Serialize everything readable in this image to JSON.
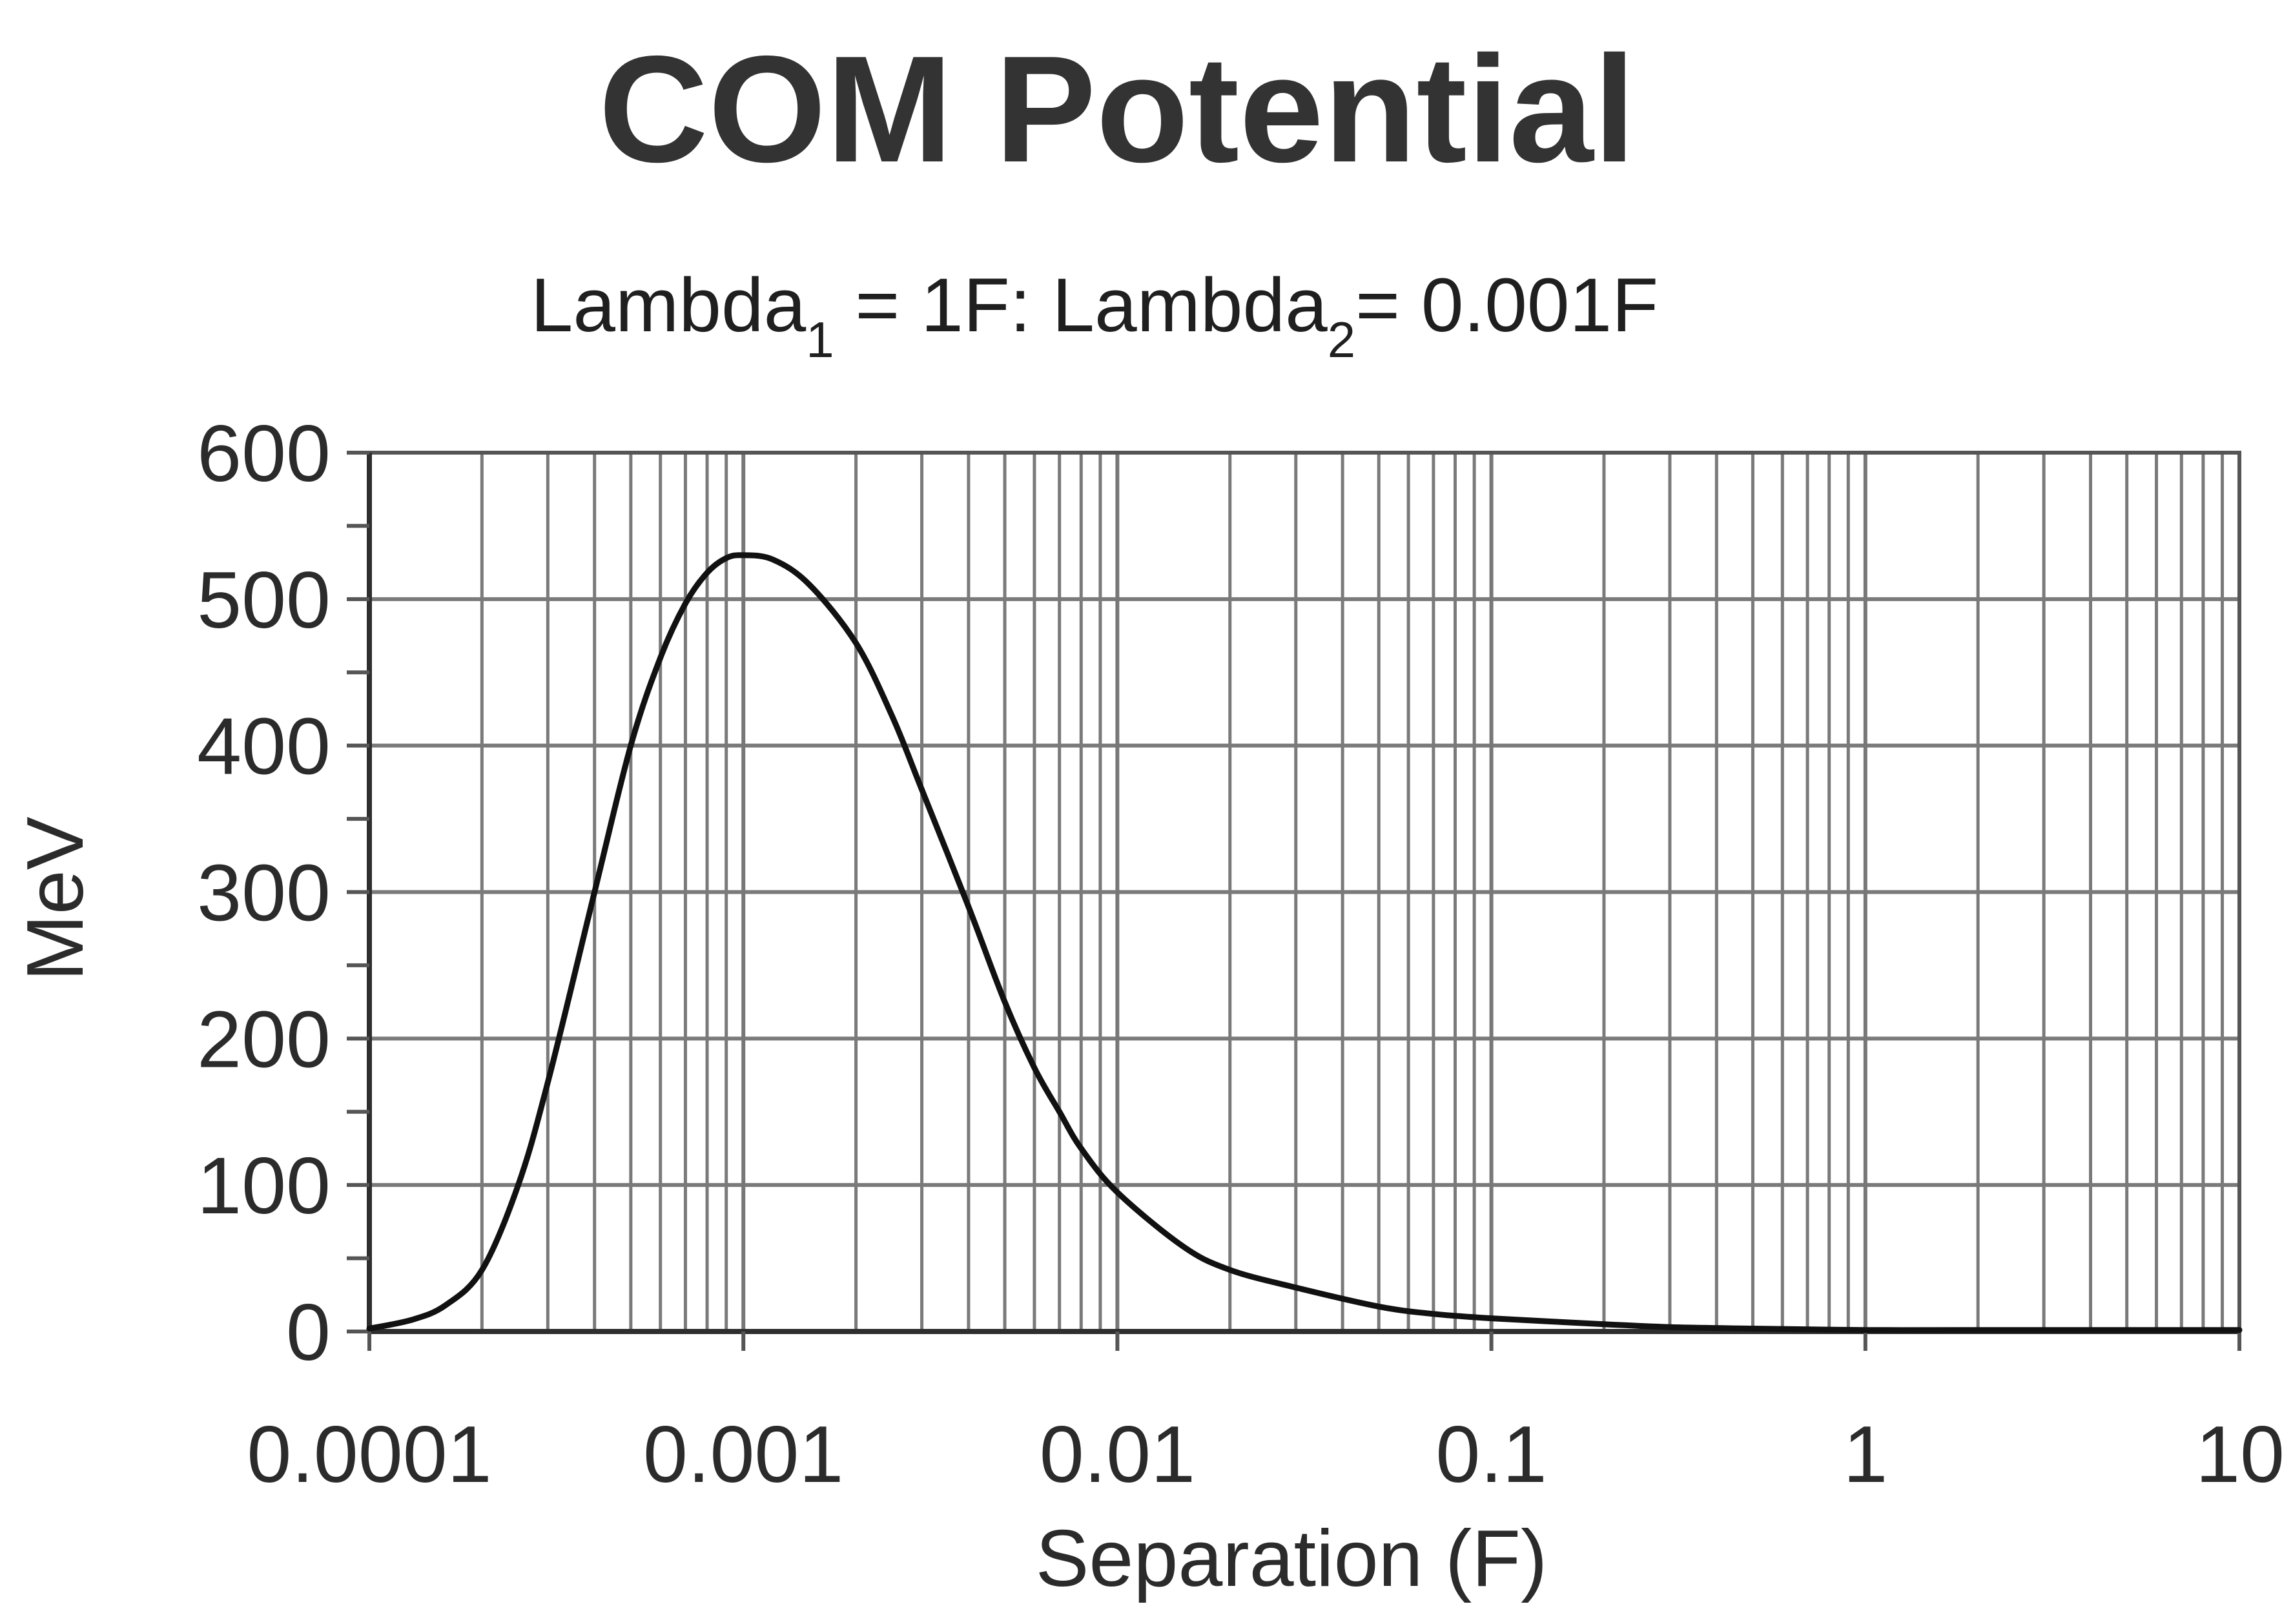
{
  "chart_data": {
    "type": "line",
    "title": "COM Potential",
    "subtitle": {
      "part1": "Lambda",
      "sub1": "1",
      "part2": " = 1F:  Lambda",
      "sub2": "2",
      "part3": "= 0.001F"
    },
    "xlabel": "Separation (F)",
    "ylabel": "MeV",
    "x_scale": "log",
    "xlim": [
      0.0001,
      10
    ],
    "ylim": [
      0,
      600
    ],
    "x_tick_labels": [
      "0.0001",
      "0.001",
      "0.01",
      "0.1",
      "1",
      "10"
    ],
    "x_tick_values": [
      0.0001,
      0.001,
      0.01,
      0.1,
      1,
      10
    ],
    "y_tick_labels": [
      "0",
      "100",
      "200",
      "300",
      "400",
      "500",
      "600"
    ],
    "y_tick_values": [
      0,
      100,
      200,
      300,
      400,
      500,
      600
    ],
    "grid": true,
    "legend": "none",
    "series": [
      {
        "color": "#111111",
        "x": [
          0.0001,
          0.00013,
          0.00016,
          0.0002,
          0.00025,
          0.0003,
          0.0004,
          0.0005,
          0.0006,
          0.0007,
          0.0008,
          0.0009,
          0.001,
          0.0012,
          0.0015,
          0.002,
          0.0025,
          0.003,
          0.004,
          0.005,
          0.006,
          0.007,
          0.008,
          0.01,
          0.015,
          0.02,
          0.03,
          0.05,
          0.07,
          0.1,
          0.2,
          0.3,
          0.5,
          1,
          2,
          5,
          10
        ],
        "y": [
          2,
          8,
          18,
          42,
          100,
          170,
          300,
          400,
          460,
          497,
          518,
          528,
          530,
          527,
          510,
          470,
          420,
          370,
          290,
          225,
          180,
          150,
          125,
          95,
          58,
          42,
          30,
          17,
          12,
          9,
          5,
          3,
          2,
          1,
          1,
          1,
          1
        ]
      }
    ]
  }
}
